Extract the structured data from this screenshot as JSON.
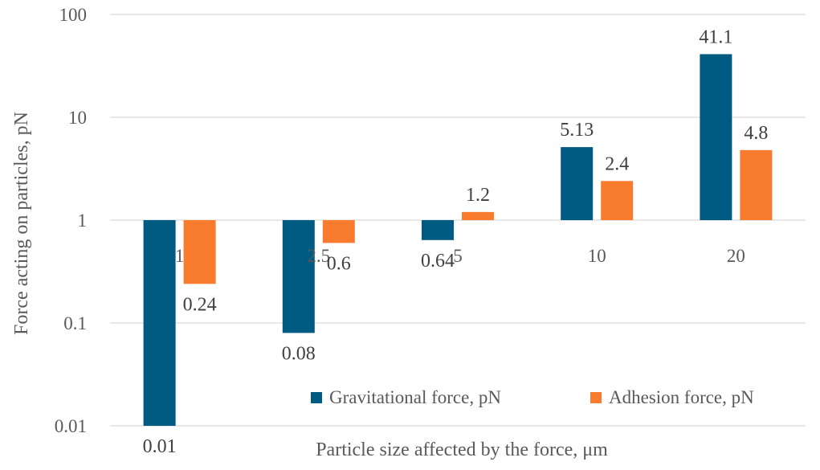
{
  "chart_data": {
    "type": "bar",
    "scale": "log",
    "base": 1,
    "ylim": [
      0.01,
      100
    ],
    "y_ticks": [
      "0.01",
      "0.1",
      "1",
      "10",
      "100"
    ],
    "categories": [
      "1",
      "2.5",
      "5",
      "10",
      "20"
    ],
    "series": [
      {
        "name": "Gravitational force, pN",
        "color": "#005b82",
        "values": [
          0.01,
          0.08,
          0.64,
          5.13,
          41.1
        ],
        "labels": [
          "0.01",
          "0.08",
          "0.64",
          "5.13",
          "41.1"
        ]
      },
      {
        "name": "Adhesion force, pN",
        "color": "#f97b2e",
        "values": [
          0.24,
          0.6,
          1.2,
          2.4,
          4.8
        ],
        "labels": [
          "0.24",
          "0.6",
          "1.2",
          "2.4",
          "4.8"
        ]
      }
    ],
    "xlabel": "Particle size affected by the force, μm",
    "ylabel": "Force acting on particles, pN",
    "grid": true,
    "legend": "bottom-right"
  }
}
